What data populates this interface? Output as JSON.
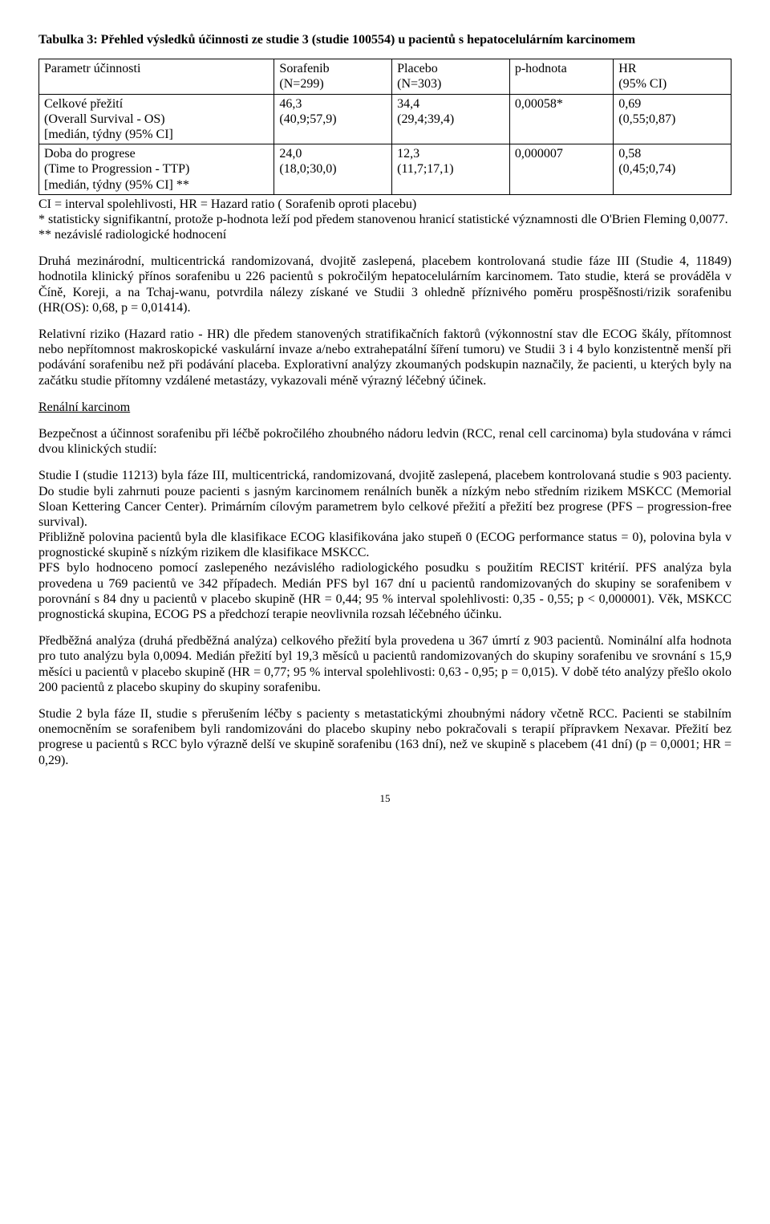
{
  "table_title": "Tabulka 3: Přehled výsledků účinnosti ze studie 3 (studie 100554) u pacientů s hepatocelulárním karcinomem",
  "table": {
    "header": {
      "param": "Parametr účinnosti",
      "sor": "Sorafenib\n(N=299)",
      "pla": "Placebo\n(N=303)",
      "p": "p-hodnota",
      "hr": "HR\n(95% CI)"
    },
    "rows": [
      {
        "param": "Celkové přežití\n(Overall Survival - OS)\n[medián, týdny (95% CI]",
        "sor": "46,3\n(40,9;57,9)",
        "pla": "34,4\n(29,4;39,4)",
        "p": "0,00058*",
        "hr": "0,69\n(0,55;0,87)"
      },
      {
        "param": "Doba do progrese\n(Time to Progression - TTP)\n[medián, týdny (95% CI] **",
        "sor": "24,0\n(18,0;30,0)",
        "pla": "12,3\n(11,7;17,1)",
        "p": "0,000007",
        "hr": "0,58\n(0,45;0,74)"
      }
    ]
  },
  "notes": {
    "n1": "CI = interval spolehlivosti, HR = Hazard ratio ( Sorafenib oproti placebu)",
    "n2": "* statisticky signifikantní, protože p-hodnota leží pod předem stanovenou hranicí statistické významnosti dle O'Brien Fleming 0,0077.",
    "n3": "** nezávislé radiologické hodnocení"
  },
  "p1": "Druhá mezinárodní, multicentrická randomizovaná, dvojitě zaslepená, placebem kontrolovaná studie fáze III (Studie 4, 11849) hodnotila klinický přínos sorafenibu u 226 pacientů s pokročilým hepatocelulárním karcinomem. Tato studie, která se prováděla v Číně, Koreji, a na Tchaj-wanu, potvrdila nálezy získané ve Studii 3 ohledně příznivého poměru prospěšnosti/rizik sorafenibu (HR(OS): 0,68, p = 0,01414).",
  "p2": "Relativní riziko (Hazard ratio - HR) dle předem stanovených stratifikačních faktorů (výkonnostní stav dle ECOG škály, přítomnost nebo nepřítomnost makroskopické vaskulární invaze a/nebo extrahepatální šíření tumoru) ve Studii 3 i 4 bylo konzistentně menší při podávání sorafenibu než při podávání placeba. Explorativní analýzy zkoumaných podskupin naznačily, že pacienti, u kterých byly na začátku studie přítomny vzdálené metastázy, vykazovali méně výrazný léčebný účinek.",
  "h_renal": "Renální karcinom",
  "p3": "Bezpečnost a účinnost sorafenibu při léčbě pokročilého zhoubného nádoru ledvin (RCC, renal cell carcinoma) byla studována v rámci dvou klinických studií:",
  "p4": "Studie I (studie 11213) byla fáze III, multicentrická, randomizovaná, dvojitě zaslepená, placebem kontrolovaná studie s 903 pacienty. Do studie byli zahrnuti pouze pacienti s jasným karcinomem renálních buněk a nízkým nebo středním rizikem MSKCC (Memorial Sloan Kettering Cancer Center). Primárním cílovým parametrem bylo celkové přežití a přežití bez progrese (PFS – progression-free survival).",
  "p4b": "Přibližně polovina pacientů byla dle klasifikace ECOG klasifikována jako stupeň 0 (ECOG performance status = 0), polovina byla v prognostické skupině s nízkým rizikem dle klasifikace MSKCC.",
  "p4c": "PFS bylo hodnoceno pomocí zaslepeného nezávislého radiologického posudku s použitím RECIST kritérií. PFS analýza byla provedena u 769 pacientů ve 342 případech. Medián PFS byl 167 dní u pacientů randomizovaných do skupiny se sorafenibem v porovnání s 84 dny u pacientů v placebo skupině (HR = 0,44; 95  % interval spolehlivosti: 0,35 - 0,55; p < 0,000001). Věk, MSKCC prognostická skupina, ECOG PS a předchozí terapie neovlivnila rozsah léčebného účinku.",
  "p5": "Předběžná analýza (druhá předběžná analýza) celkového přežití byla provedena u 367 úmrtí z 903 pacientů. Nominální alfa hodnota pro tuto analýzu byla 0,0094. Medián přežití byl 19,3 měsíců u pacientů randomizovaných do skupiny sorafenibu ve srovnání s 15,9 měsíci u pacientů v placebo skupině (HR = 0,77; 95 % interval spolehlivosti: 0,63 - 0,95; p = 0,015). V době této analýzy přešlo okolo 200 pacientů z placebo skupiny do skupiny sorafenibu.",
  "p6": "Studie 2 byla fáze II, studie s přerušením léčby s pacienty s metastatickými zhoubnými nádory včetně RCC. Pacienti se stabilním onemocněním se sorafenibem byli randomizováni do placebo skupiny nebo pokračovali s terapií přípravkem Nexavar. Přežití bez progrese u pacientů s RCC bylo výrazně delší ve skupině sorafenibu (163 dní), než ve skupině s placebem (41 dní) (p = 0,0001; HR = 0,29).",
  "page_num": "15"
}
